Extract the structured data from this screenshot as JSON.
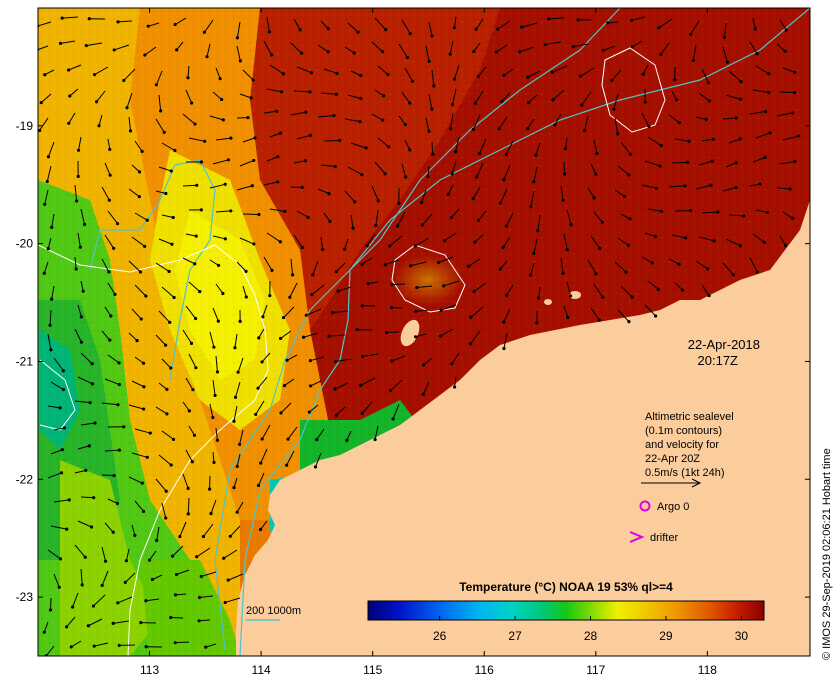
{
  "map": {
    "date": "22-Apr-2018",
    "time": "20:17Z",
    "x_ticks": [
      {
        "value": 113,
        "label": "113"
      },
      {
        "value": 114,
        "label": "114"
      },
      {
        "value": 115,
        "label": "115"
      },
      {
        "value": 116,
        "label": "116"
      },
      {
        "value": 117,
        "label": "117"
      },
      {
        "value": 118,
        "label": "118"
      }
    ],
    "y_ticks": [
      {
        "value": -19,
        "label": "-19"
      },
      {
        "value": -20,
        "label": "-20"
      },
      {
        "value": -21,
        "label": "-21"
      },
      {
        "value": -22,
        "label": "-22"
      },
      {
        "value": -23,
        "label": "-23"
      }
    ],
    "lon_range": [
      112.0,
      118.92
    ],
    "lat_range": [
      -23.5,
      -18.0
    ],
    "altimetry_note": {
      "line1": "Altimetric sealevel",
      "line2": "(0.1m contours)",
      "line3": "and velocity for",
      "line4": "22-Apr 20Z",
      "scale_label": "0.5m/s (1kt 24h)"
    },
    "legend": {
      "argo_label": "Argo 0",
      "drifter_label": "drifter",
      "argo_color": "#e000e0",
      "drifter_color": "#e000e0"
    },
    "bathymetry_label": "200  1000m",
    "bathymetry_color": "#4fc4c8",
    "land_color": "#fbcc9c"
  },
  "colorbar": {
    "title": "Temperature (°C) NOAA 19 53% ql>=4",
    "ticks": [
      {
        "value": 26,
        "label": "26"
      },
      {
        "value": 27,
        "label": "27"
      },
      {
        "value": 28,
        "label": "28"
      },
      {
        "value": 29,
        "label": "29"
      },
      {
        "value": 30,
        "label": "30"
      }
    ],
    "range": [
      25.05,
      30.3
    ]
  },
  "credit": "© IMOS 29-Sep-2019 02:06:21 Hobart time"
}
